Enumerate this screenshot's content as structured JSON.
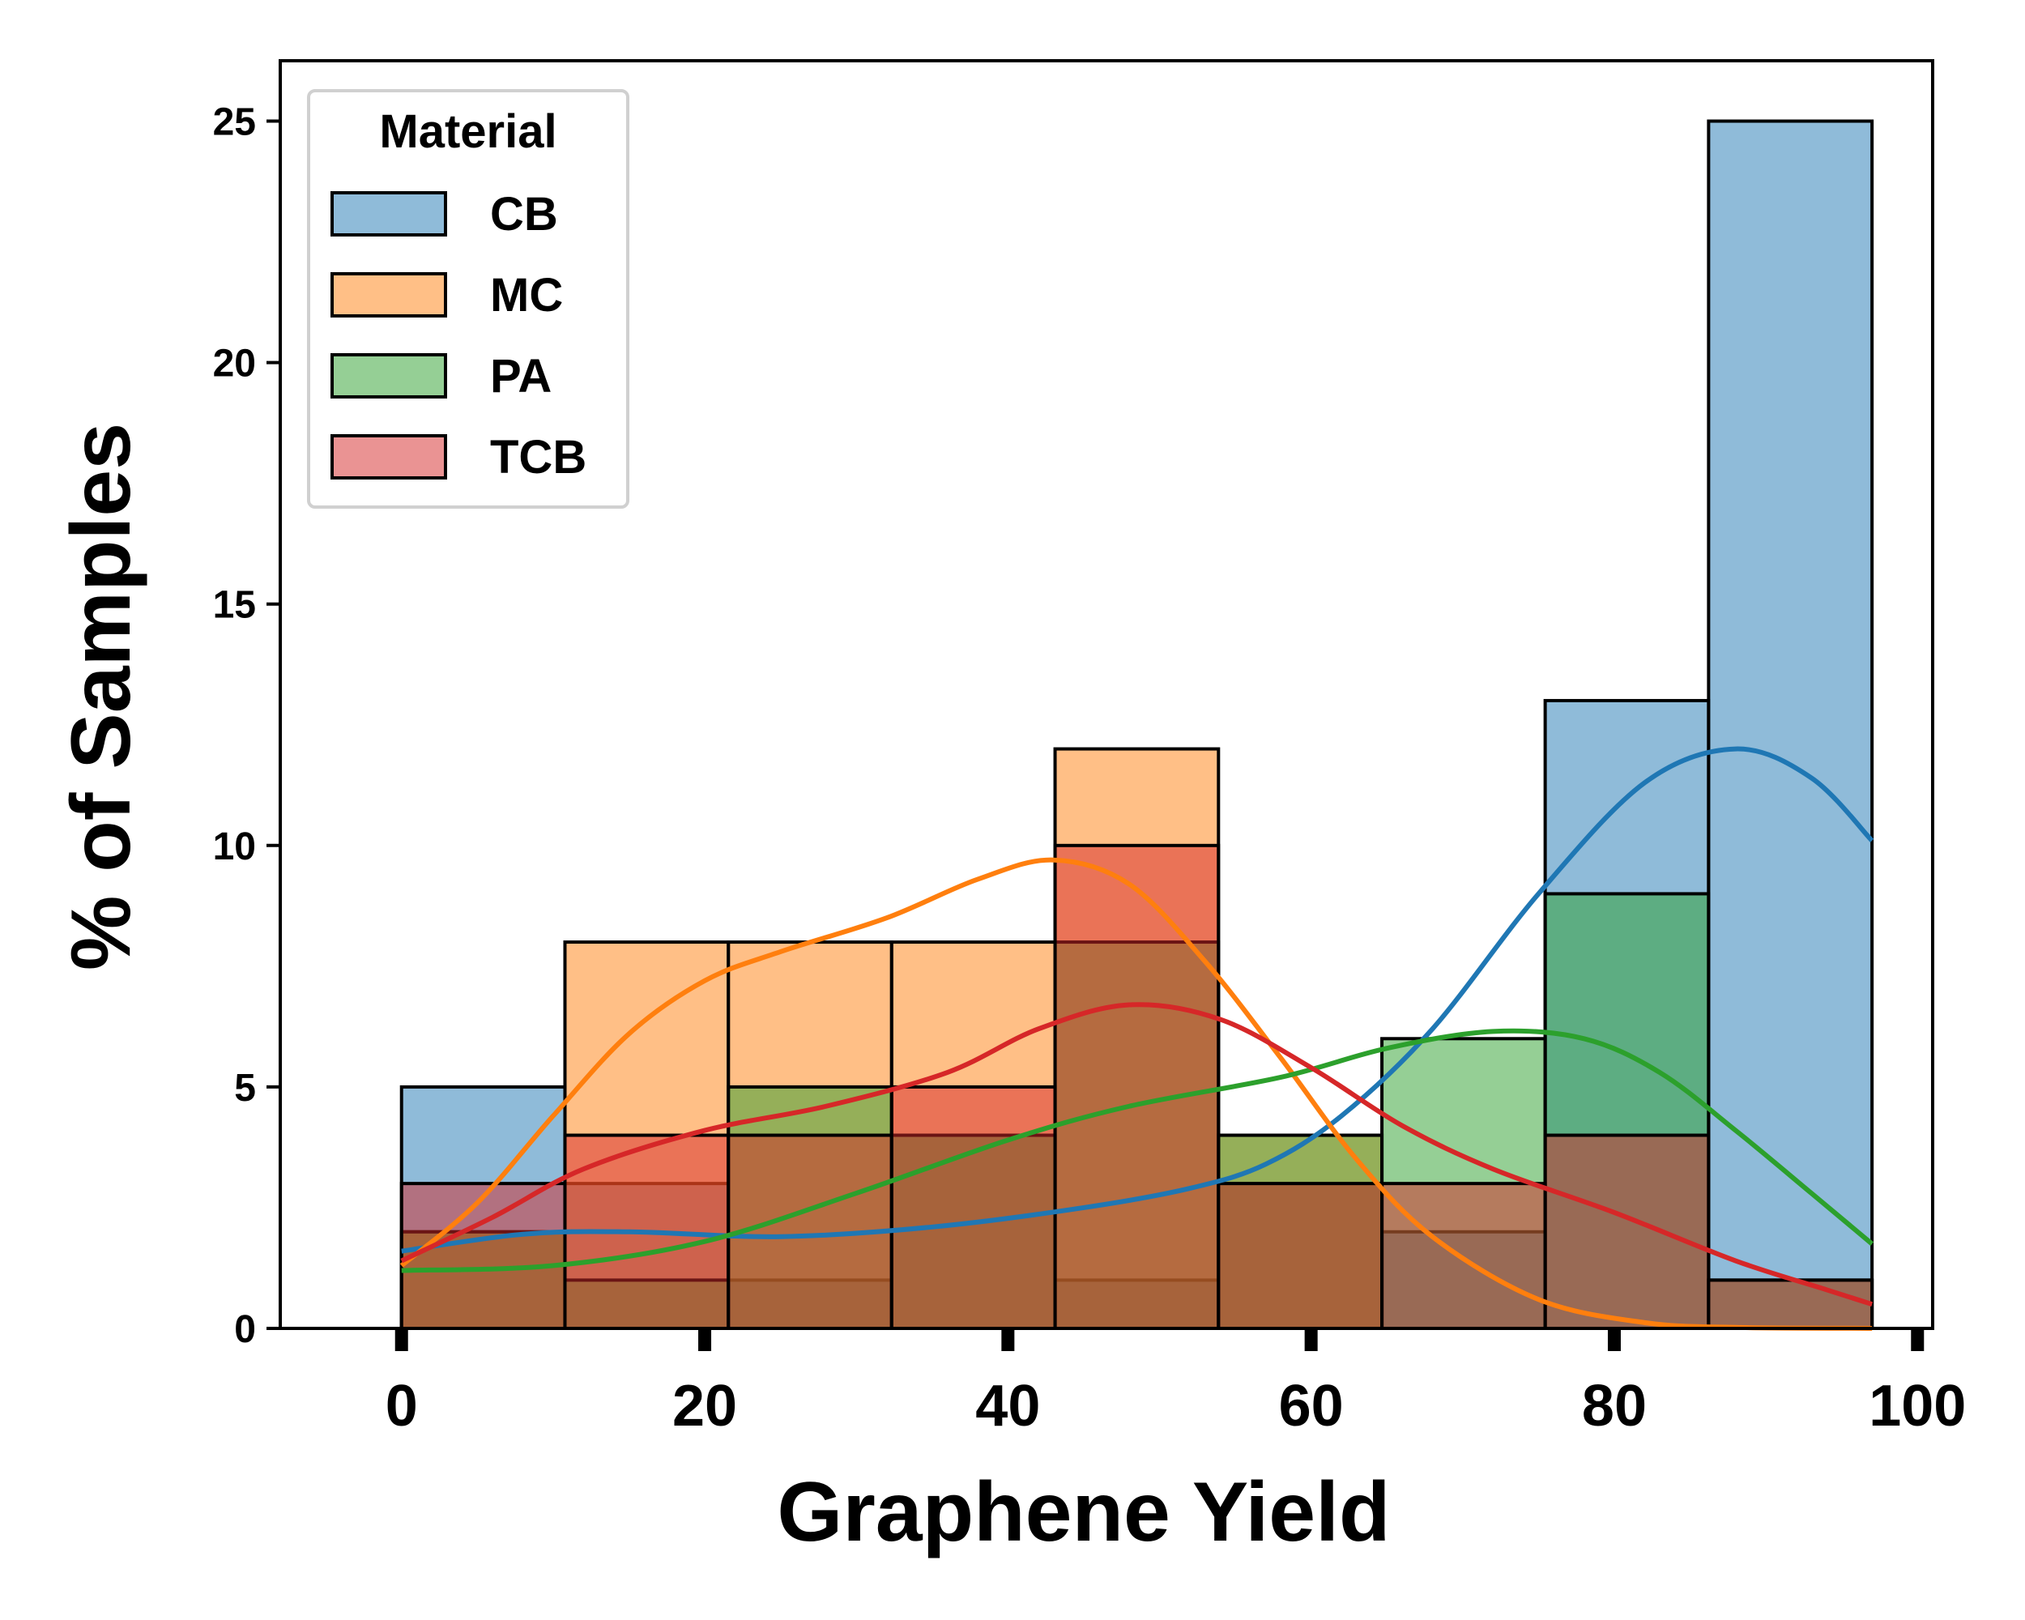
{
  "chart_data": {
    "type": "histogram",
    "xlabel": "Graphene Yield",
    "ylabel": "% of Samples",
    "xlim": [
      -8,
      101
    ],
    "ylim": [
      0,
      26.25
    ],
    "xticks": [
      0,
      20,
      40,
      60,
      80,
      100
    ],
    "yticks": [
      0,
      5,
      10,
      15,
      20,
      25
    ],
    "bin_edges": [
      0,
      10.78,
      21.56,
      32.33,
      43.11,
      53.89,
      64.67,
      75.44,
      86.22,
      97
    ],
    "legend": {
      "title": "Material",
      "placement": "upper left"
    },
    "series": [
      {
        "name": "CB",
        "color": "#1f77b4",
        "fill": "#8fb9d9",
        "values": [
          5,
          3,
          1,
          4,
          1,
          3,
          2,
          13,
          25
        ],
        "kde": [
          [
            0,
            1.6
          ],
          [
            8,
            1.95
          ],
          [
            15,
            2.0
          ],
          [
            25,
            1.9
          ],
          [
            35,
            2.1
          ],
          [
            45,
            2.5
          ],
          [
            52,
            2.9
          ],
          [
            57,
            3.4
          ],
          [
            62,
            4.4
          ],
          [
            68,
            6.2
          ],
          [
            75,
            9.0
          ],
          [
            82,
            11.3
          ],
          [
            88,
            12.0
          ],
          [
            93,
            11.4
          ],
          [
            97,
            10.1
          ]
        ]
      },
      {
        "name": "MC",
        "color": "#ff7f0e",
        "fill": "#ffbe86",
        "values": [
          2,
          8,
          8,
          8,
          12,
          4,
          0,
          0,
          0
        ],
        "kde": [
          [
            0,
            1.3
          ],
          [
            5,
            2.6
          ],
          [
            10,
            4.4
          ],
          [
            15,
            6.1
          ],
          [
            20,
            7.2
          ],
          [
            25,
            7.8
          ],
          [
            32,
            8.5
          ],
          [
            38,
            9.3
          ],
          [
            43,
            9.7
          ],
          [
            48,
            9.2
          ],
          [
            53,
            7.6
          ],
          [
            58,
            5.6
          ],
          [
            63,
            3.5
          ],
          [
            68,
            1.9
          ],
          [
            75,
            0.6
          ],
          [
            82,
            0.12
          ],
          [
            88,
            0.02
          ],
          [
            97,
            0
          ]
        ]
      },
      {
        "name": "PA",
        "color": "#2ca02c",
        "fill": "#96d096",
        "values": [
          2,
          1,
          5,
          4,
          8,
          4,
          6,
          9,
          1
        ],
        "kde": [
          [
            0,
            1.2
          ],
          [
            10,
            1.3
          ],
          [
            20,
            1.8
          ],
          [
            30,
            2.8
          ],
          [
            40,
            3.9
          ],
          [
            48,
            4.6
          ],
          [
            58,
            5.2
          ],
          [
            65,
            5.8
          ],
          [
            72,
            6.15
          ],
          [
            78,
            6.0
          ],
          [
            83,
            5.3
          ],
          [
            88,
            4.1
          ],
          [
            93,
            2.8
          ],
          [
            97,
            1.75
          ]
        ]
      },
      {
        "name": "TCB",
        "color": "#d62728",
        "fill": "#ea9393",
        "values": [
          3,
          4,
          4,
          5,
          10,
          3,
          3,
          4,
          1
        ],
        "kde": [
          [
            0,
            1.4
          ],
          [
            6,
            2.3
          ],
          [
            12,
            3.3
          ],
          [
            20,
            4.1
          ],
          [
            28,
            4.6
          ],
          [
            36,
            5.3
          ],
          [
            42,
            6.2
          ],
          [
            48,
            6.7
          ],
          [
            54,
            6.4
          ],
          [
            60,
            5.4
          ],
          [
            66,
            4.2
          ],
          [
            72,
            3.3
          ],
          [
            80,
            2.4
          ],
          [
            88,
            1.4
          ],
          [
            94,
            0.8
          ],
          [
            97,
            0.5
          ]
        ]
      }
    ]
  }
}
